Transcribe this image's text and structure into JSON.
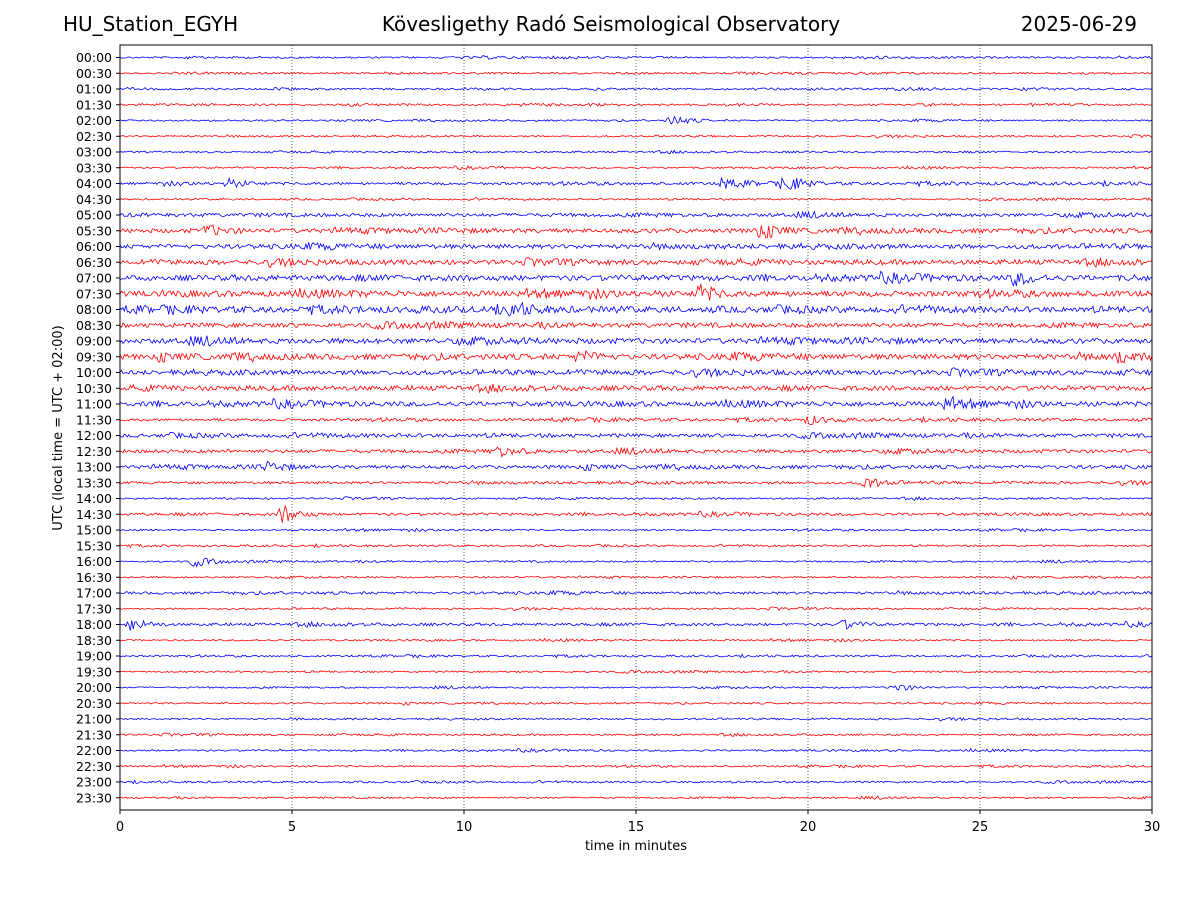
{
  "header": {
    "station": "HU_Station_EGYH",
    "title": "Kövesligethy Radó Seismological Observatory",
    "date": "2025-06-29"
  },
  "chart_data": {
    "type": "line",
    "title": "Kövesligethy Radó Seismological Observatory",
    "xlabel": "time in minutes",
    "ylabel": "UTC (local time = UTC + 02:00)",
    "xlim": [
      0,
      30
    ],
    "xticks": [
      0,
      5,
      10,
      15,
      20,
      25,
      30
    ],
    "grid": "vertical dotted lines at 5, 10, 15, 20, 25 minutes",
    "series_colors": [
      "#0000ff",
      "#ff0000"
    ],
    "rows": [
      "00:00",
      "00:30",
      "01:00",
      "01:30",
      "02:00",
      "02:30",
      "03:00",
      "03:30",
      "04:00",
      "04:30",
      "05:00",
      "05:30",
      "06:00",
      "06:30",
      "07:00",
      "07:30",
      "08:00",
      "08:30",
      "09:00",
      "09:30",
      "10:00",
      "10:30",
      "11:00",
      "11:30",
      "12:00",
      "12:30",
      "13:00",
      "13:30",
      "14:00",
      "14:30",
      "15:00",
      "15:30",
      "16:00",
      "16:30",
      "17:00",
      "17:30",
      "18:00",
      "18:30",
      "19:00",
      "19:30",
      "20:00",
      "20:30",
      "21:00",
      "21:30",
      "22:00",
      "22:30",
      "23:00",
      "23:30"
    ],
    "noise_level": [
      1,
      1,
      1,
      1,
      1,
      1,
      1,
      1,
      2,
      1,
      3,
      4,
      4,
      4,
      5,
      5,
      5,
      4,
      5,
      5,
      4,
      4,
      4,
      2,
      3,
      3,
      3,
      2,
      1,
      2,
      1,
      1,
      1,
      1,
      2,
      1,
      2,
      1,
      1,
      1,
      1,
      1,
      1,
      1,
      1,
      1,
      1,
      1
    ],
    "events": [
      {
        "row": "04:00",
        "t": 19.3,
        "amp": 1.6
      },
      {
        "row": "04:00",
        "t": 17.5,
        "amp": 1.0
      },
      {
        "row": "04:00",
        "t": 3.1,
        "amp": 0.8
      },
      {
        "row": "02:00",
        "t": 16.0,
        "amp": 1.0
      },
      {
        "row": "05:30",
        "t": 2.5,
        "amp": 1.0
      },
      {
        "row": "05:30",
        "t": 18.5,
        "amp": 1.1
      },
      {
        "row": "07:00",
        "t": 26.0,
        "amp": 1.2
      },
      {
        "row": "07:30",
        "t": 16.8,
        "amp": 1.6
      },
      {
        "row": "08:00",
        "t": 11.3,
        "amp": 1.2
      },
      {
        "row": "09:30",
        "t": 29.0,
        "amp": 1.1
      },
      {
        "row": "09:30",
        "t": 13.3,
        "amp": 1.0
      },
      {
        "row": "11:00",
        "t": 24.0,
        "amp": 0.9
      },
      {
        "row": "11:30",
        "t": 20.0,
        "amp": 0.8
      },
      {
        "row": "12:30",
        "t": 11.0,
        "amp": 1.0
      },
      {
        "row": "13:00",
        "t": 4.2,
        "amp": 0.9
      },
      {
        "row": "13:30",
        "t": 21.6,
        "amp": 1.2
      },
      {
        "row": "14:30",
        "t": 4.7,
        "amp": 1.6
      },
      {
        "row": "16:00",
        "t": 2.1,
        "amp": 0.9
      },
      {
        "row": "18:00",
        "t": 0.3,
        "amp": 1.2
      },
      {
        "row": "18:00",
        "t": 21.0,
        "amp": 0.8
      },
      {
        "row": "20:00",
        "t": 22.5,
        "amp": 0.8
      }
    ]
  }
}
